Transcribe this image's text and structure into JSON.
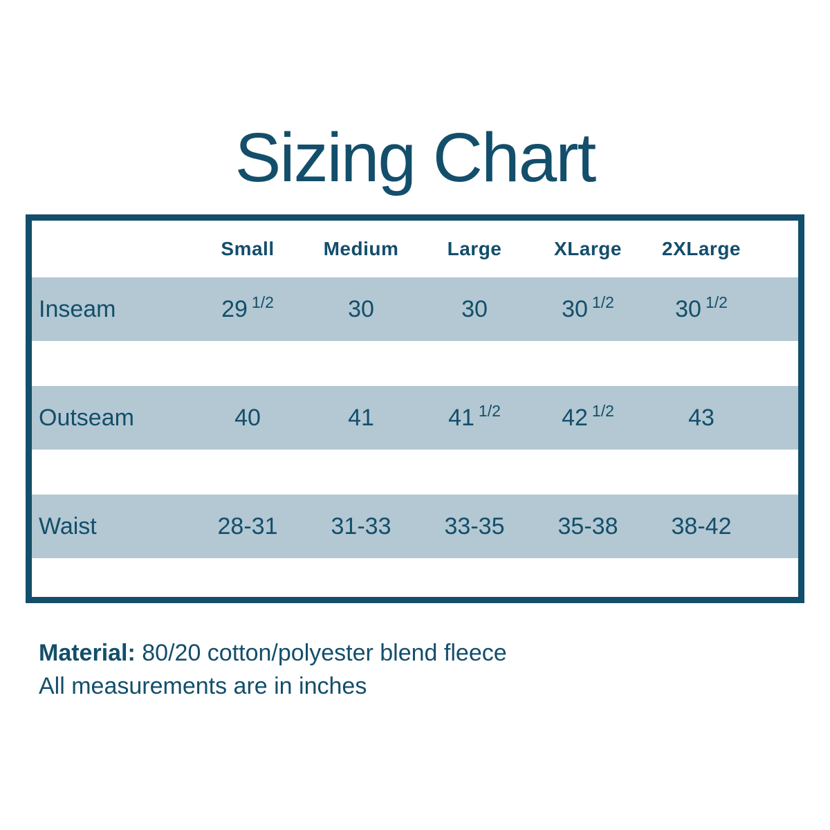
{
  "page_title": "Sizing Chart",
  "colors": {
    "dark_teal": "#134e6b",
    "row_stripe": "#b3c8d2",
    "background": "#ffffff"
  },
  "chart_data": {
    "type": "table",
    "title": "Sizing Chart",
    "columns": [
      "Small",
      "Medium",
      "Large",
      "XLarge",
      "2XLarge"
    ],
    "rows": [
      {
        "label": "Inseam",
        "values": [
          "29 1/2",
          "30",
          "30",
          "30 1/2",
          "30 1/2"
        ]
      },
      {
        "label": "Outseam",
        "values": [
          "40",
          "41",
          "41 1/2",
          "42 1/2",
          "43"
        ]
      },
      {
        "label": "Waist",
        "values": [
          "28-31",
          "31-33",
          "33-35",
          "35-38",
          "38-42"
        ]
      }
    ],
    "notes": [
      "Material: 80/20 cotton/polyester blend fleece",
      "All measurements are in inches"
    ]
  },
  "footer": {
    "material_label": "Material:",
    "material_text": " 80/20 cotton/polyester blend fleece",
    "note": "All measurements are in inches"
  }
}
